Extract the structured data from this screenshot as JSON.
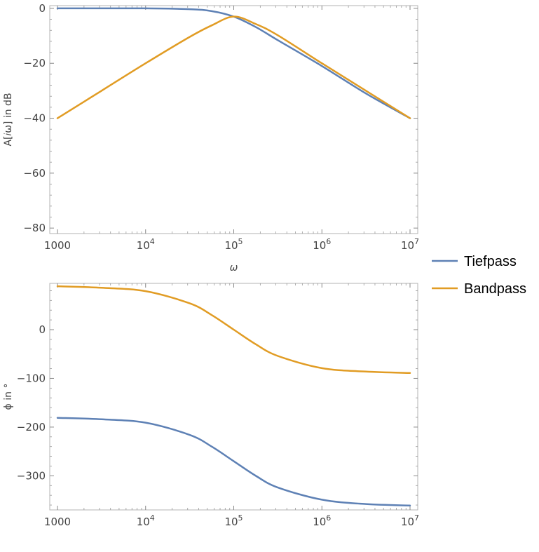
{
  "chart_data": [
    {
      "type": "line",
      "title": "",
      "xlabel": "ω",
      "ylabel": "A[𝑖ω] in dB",
      "x_scale": "log",
      "xlim": [
        1000,
        10000000
      ],
      "ylim": [
        -82,
        1
      ],
      "x_ticks": [
        {
          "value": 1000,
          "base": "1000",
          "exp": ""
        },
        {
          "value": 10000,
          "base": "10",
          "exp": "4"
        },
        {
          "value": 100000,
          "base": "10",
          "exp": "5"
        },
        {
          "value": 1000000,
          "base": "10",
          "exp": "6"
        },
        {
          "value": 10000000,
          "base": "10",
          "exp": "7"
        }
      ],
      "y_ticks": [
        {
          "value": 0,
          "label": "0"
        },
        {
          "value": -20,
          "label": "−20"
        },
        {
          "value": -40,
          "label": "−40"
        },
        {
          "value": -60,
          "label": "−60"
        },
        {
          "value": -80,
          "label": "−80"
        }
      ],
      "series": [
        {
          "name": "Tiefpass",
          "x": [
            1000,
            3162,
            10000,
            31623,
            56234,
            100000,
            177828,
            316228,
            1000000,
            3162278,
            10000000
          ],
          "y": [
            0,
            0,
            0,
            -0.3,
            -1.0,
            -3.0,
            -6.8,
            -11.6,
            -21.0,
            -31.0,
            -40.0
          ]
        },
        {
          "name": "Bandpass",
          "x": [
            1000,
            3162,
            10000,
            31623,
            56234,
            100000,
            177828,
            316228,
            1000000,
            3162278,
            10000000
          ],
          "y": [
            -40.0,
            -30.0,
            -20.0,
            -10.4,
            -6.2,
            -3.0,
            -5.7,
            -9.8,
            -20.0,
            -30.0,
            -40.0
          ]
        }
      ]
    },
    {
      "type": "line",
      "title": "",
      "xlabel": "",
      "ylabel": "ϕ in °",
      "x_scale": "log",
      "xlim": [
        1000,
        10000000
      ],
      "ylim": [
        -370,
        95
      ],
      "x_ticks": [
        {
          "value": 1000,
          "base": "1000",
          "exp": ""
        },
        {
          "value": 10000,
          "base": "10",
          "exp": "4"
        },
        {
          "value": 100000,
          "base": "10",
          "exp": "5"
        },
        {
          "value": 1000000,
          "base": "10",
          "exp": "6"
        },
        {
          "value": 10000000,
          "base": "10",
          "exp": "7"
        }
      ],
      "y_ticks": [
        {
          "value": 0,
          "label": "0"
        },
        {
          "value": -100,
          "label": "−100"
        },
        {
          "value": -200,
          "label": "−200"
        },
        {
          "value": -300,
          "label": "−300"
        }
      ],
      "series": [
        {
          "name": "Tiefpass",
          "x": [
            1000,
            3162,
            10000,
            31623,
            56234,
            100000,
            177828,
            316228,
            1000000,
            3162278,
            10000000
          ],
          "y": [
            -181,
            -184,
            -191,
            -216,
            -240,
            -270,
            -300,
            -324,
            -349,
            -358,
            -361
          ]
        },
        {
          "name": "Bandpass",
          "x": [
            1000,
            3162,
            10000,
            31623,
            56234,
            100000,
            177828,
            316228,
            1000000,
            3162278,
            10000000
          ],
          "y": [
            89,
            86,
            79,
            54,
            30,
            0,
            -30,
            -54,
            -79,
            -86,
            -89
          ]
        }
      ]
    }
  ],
  "legend": {
    "placement": "right",
    "items": [
      {
        "label": "Tiefpass",
        "color": "#5e81b5"
      },
      {
        "label": "Bandpass",
        "color": "#e19c24"
      }
    ]
  }
}
